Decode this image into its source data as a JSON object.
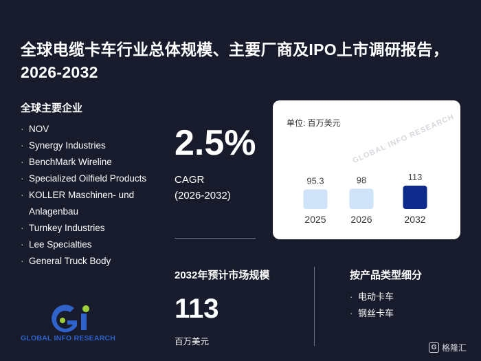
{
  "title": "全球电缆卡车行业总体规模、主要厂商及IPO上市调研报告，2026-2032",
  "companies": {
    "heading": "全球主要企业",
    "items": [
      "NOV",
      "Synergy Industries",
      "BenchMark Wireline",
      "Specialized Oilfield Products",
      "KOLLER Maschinen- und Anlagenbau",
      "Turnkey Industries",
      "Lee Specialties",
      "General Truck Body"
    ]
  },
  "logo": {
    "text": "GLOBAL INFO RESEARCH",
    "colors": {
      "blue": "#2f63c9",
      "green": "#9fd23a"
    }
  },
  "cagr": {
    "value": "2.5%",
    "label": "CAGR",
    "period": "(2026-2032)"
  },
  "chart_card": {
    "unit_label": "单位: 百万美元",
    "watermark": "GLOBAL INFO RESEARCH"
  },
  "chart_data": {
    "type": "bar",
    "categories": [
      "2025",
      "2026",
      "2032"
    ],
    "values": [
      95.3,
      98,
      113
    ],
    "value_labels": [
      "95.3",
      "98",
      "113"
    ],
    "ylabel": "",
    "colors": [
      "#cfe3f8",
      "#cfe3f8",
      "#0e2a8a"
    ]
  },
  "market": {
    "heading": "2032年预计市场规模",
    "value": "113",
    "unit": "百万美元"
  },
  "segments": {
    "heading": "按产品类型细分",
    "items": [
      "电动卡车",
      "钢丝卡车"
    ]
  },
  "brand": {
    "badge": "G",
    "text": "格隆汇"
  }
}
